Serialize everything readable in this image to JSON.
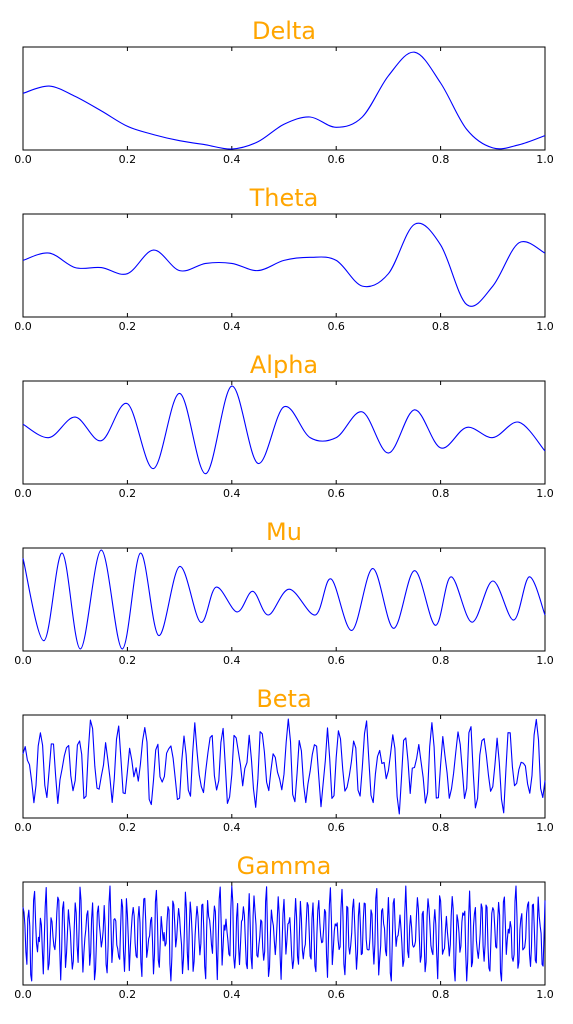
{
  "colors": {
    "title": "#ffa500",
    "line": "#0000ff",
    "axes": "#000000",
    "background": "#ffffff"
  },
  "chart_data": [
    {
      "type": "line",
      "title": "Delta",
      "xlim": [
        0.0,
        1.0
      ],
      "xticks": [
        "0.0",
        "0.2",
        "0.4",
        "0.6",
        "0.8",
        "1.0"
      ],
      "yticks_shown": false,
      "grid": false,
      "series": [
        {
          "x": [
            0.0,
            0.05,
            0.1,
            0.15,
            0.2,
            0.25,
            0.3,
            0.35,
            0.4,
            0.45,
            0.5,
            0.55,
            0.6,
            0.65,
            0.7,
            0.75,
            0.8,
            0.85,
            0.9,
            0.95,
            1.0
          ],
          "y": [
            0.55,
            0.62,
            0.52,
            0.38,
            0.23,
            0.15,
            0.09,
            0.05,
            0.01,
            0.08,
            0.25,
            0.32,
            0.22,
            0.32,
            0.72,
            0.95,
            0.65,
            0.2,
            0.02,
            0.05,
            0.14
          ]
        }
      ]
    },
    {
      "type": "line",
      "title": "Theta",
      "xlim": [
        0.0,
        1.0
      ],
      "xticks": [
        "0.0",
        "0.2",
        "0.4",
        "0.6",
        "0.8",
        "1.0"
      ],
      "yticks_shown": false,
      "grid": false,
      "series": [
        {
          "x": [
            0.0,
            0.05,
            0.1,
            0.15,
            0.2,
            0.25,
            0.3,
            0.35,
            0.4,
            0.45,
            0.5,
            0.55,
            0.6,
            0.65,
            0.7,
            0.75,
            0.8,
            0.85,
            0.9,
            0.95,
            1.0
          ],
          "y": [
            0.55,
            0.62,
            0.48,
            0.48,
            0.42,
            0.65,
            0.45,
            0.52,
            0.52,
            0.45,
            0.55,
            0.58,
            0.55,
            0.3,
            0.42,
            0.9,
            0.7,
            0.12,
            0.3,
            0.72,
            0.62
          ]
        }
      ]
    },
    {
      "type": "line",
      "title": "Alpha",
      "xlim": [
        0.0,
        1.0
      ],
      "xticks": [
        "0.0",
        "0.2",
        "0.4",
        "0.6",
        "0.8",
        "1.0"
      ],
      "yticks_shown": false,
      "grid": false,
      "series": [
        {
          "x": [
            0.0,
            0.05,
            0.1,
            0.15,
            0.2,
            0.25,
            0.3,
            0.35,
            0.4,
            0.45,
            0.5,
            0.55,
            0.6,
            0.65,
            0.7,
            0.75,
            0.8,
            0.85,
            0.9,
            0.95,
            1.0
          ],
          "y": [
            0.58,
            0.45,
            0.65,
            0.42,
            0.78,
            0.15,
            0.88,
            0.1,
            0.95,
            0.2,
            0.75,
            0.45,
            0.45,
            0.7,
            0.3,
            0.72,
            0.35,
            0.55,
            0.45,
            0.6,
            0.32
          ]
        }
      ]
    },
    {
      "type": "line",
      "title": "Mu",
      "xlim": [
        0.0,
        1.0
      ],
      "xticks": [
        "0.0",
        "0.2",
        "0.4",
        "0.6",
        "0.8",
        "1.0"
      ],
      "yticks_shown": false,
      "grid": false,
      "series": [
        {
          "x": [
            0.0,
            0.04,
            0.075,
            0.11,
            0.15,
            0.19,
            0.225,
            0.26,
            0.3,
            0.34,
            0.37,
            0.41,
            0.44,
            0.47,
            0.51,
            0.56,
            0.59,
            0.63,
            0.67,
            0.71,
            0.75,
            0.79,
            0.82,
            0.86,
            0.9,
            0.94,
            0.97,
            1.0
          ],
          "y": [
            0.9,
            0.1,
            0.95,
            0.02,
            0.98,
            0.02,
            0.95,
            0.15,
            0.82,
            0.28,
            0.62,
            0.38,
            0.58,
            0.35,
            0.6,
            0.35,
            0.7,
            0.2,
            0.8,
            0.22,
            0.78,
            0.25,
            0.72,
            0.28,
            0.68,
            0.3,
            0.72,
            0.35
          ]
        }
      ]
    },
    {
      "type": "line",
      "title": "Beta",
      "xlim": [
        0.0,
        1.0
      ],
      "xticks": [
        "0.0",
        "0.2",
        "0.4",
        "0.6",
        "0.8",
        "1.0"
      ],
      "yticks_shown": false,
      "grid": false,
      "generated_from": {
        "frequency_range": "high",
        "approx_oscillations": 40,
        "amplitude_min": 0.05,
        "amplitude_max": 0.95
      }
    },
    {
      "type": "line",
      "title": "Gamma",
      "xlim": [
        0.0,
        1.0
      ],
      "xticks": [
        "0.0",
        "0.2",
        "0.4",
        "0.6",
        "0.8",
        "1.0"
      ],
      "yticks_shown": false,
      "grid": false,
      "generated_from": {
        "frequency_range": "very-high",
        "approx_oscillations": 90,
        "amplitude_min": 0.05,
        "amplitude_max": 0.95
      }
    }
  ]
}
